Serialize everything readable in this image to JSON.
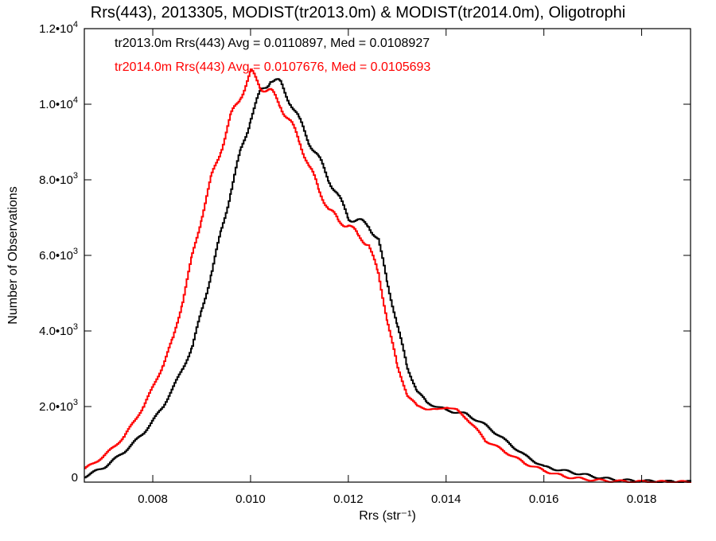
{
  "chart_data": {
    "type": "line",
    "title": "Rrs(443), 2013305, MODIST(tr2013.0m) & MODIST(tr2014.0m), Oligotrophi",
    "xlabel": "Rrs (str⁻¹)",
    "ylabel": "Number of Observations",
    "xlim": [
      0.0066,
      0.019
    ],
    "ylim": [
      0,
      12000
    ],
    "x_ticks": [
      {
        "v": 0.008,
        "label": "0.008"
      },
      {
        "v": 0.01,
        "label": "0.010"
      },
      {
        "v": 0.012,
        "label": "0.012"
      },
      {
        "v": 0.014,
        "label": "0.014"
      },
      {
        "v": 0.016,
        "label": "0.016"
      },
      {
        "v": 0.018,
        "label": "0.018"
      }
    ],
    "y_ticks": [
      {
        "v": 0,
        "mant": "0",
        "exp": ""
      },
      {
        "v": 2000,
        "mant": "2.0•10",
        "exp": "3"
      },
      {
        "v": 4000,
        "mant": "4.0•10",
        "exp": "3"
      },
      {
        "v": 6000,
        "mant": "6.0•10",
        "exp": "3"
      },
      {
        "v": 8000,
        "mant": "8.0•10",
        "exp": "3"
      },
      {
        "v": 10000,
        "mant": "1.0•10",
        "exp": "4"
      },
      {
        "v": 12000,
        "mant": "1.2•10",
        "exp": "4"
      }
    ],
    "grid": false,
    "legend_position": "top-left",
    "series": [
      {
        "name": "tr2013.0m",
        "legend_text": "tr2013.0m Rrs(443) Avg = 0.0110897, Med = 0.0108927",
        "color": "#000000",
        "x": [
          0.0066,
          0.007,
          0.0074,
          0.0078,
          0.0082,
          0.0086,
          0.0088,
          0.009,
          0.0092,
          0.0094,
          0.0096,
          0.0098,
          0.01,
          0.0102,
          0.0104,
          0.0106,
          0.0108,
          0.011,
          0.0112,
          0.0114,
          0.0116,
          0.0118,
          0.012,
          0.0122,
          0.0124,
          0.0126,
          0.0128,
          0.013,
          0.0132,
          0.0134,
          0.0136,
          0.0138,
          0.014,
          0.0144,
          0.0148,
          0.0152,
          0.0156,
          0.016,
          0.0164,
          0.0168,
          0.0172,
          0.0176,
          0.018,
          0.0184,
          0.019
        ],
        "y": [
          150,
          400,
          800,
          1300,
          2000,
          3000,
          3600,
          4600,
          5600,
          6700,
          7800,
          8800,
          9700,
          10300,
          10700,
          10500,
          10100,
          9500,
          9000,
          8500,
          8000,
          7500,
          7000,
          6900,
          6800,
          6400,
          5200,
          4100,
          3000,
          2400,
          2100,
          2000,
          1900,
          1800,
          1500,
          1100,
          700,
          400,
          300,
          200,
          100,
          50,
          30,
          15,
          5
        ]
      },
      {
        "name": "tr2014.0m",
        "legend_text": "tr2014.0m Rrs(443) Avg = 0.0107676, Med = 0.0105693",
        "color": "#ff0000",
        "x": [
          0.0066,
          0.007,
          0.0074,
          0.0078,
          0.0082,
          0.0084,
          0.0086,
          0.0088,
          0.009,
          0.0092,
          0.0094,
          0.0096,
          0.0098,
          0.01,
          0.0102,
          0.0104,
          0.0106,
          0.0108,
          0.011,
          0.0112,
          0.0114,
          0.0116,
          0.0118,
          0.012,
          0.0122,
          0.0124,
          0.0126,
          0.0128,
          0.013,
          0.0132,
          0.0134,
          0.0136,
          0.0138,
          0.014,
          0.0142,
          0.0144,
          0.0148,
          0.0152,
          0.0156,
          0.016,
          0.0164,
          0.0168,
          0.0172,
          0.0176,
          0.018,
          0.0184,
          0.019
        ],
        "y": [
          350,
          700,
          1200,
          2000,
          3100,
          3800,
          4800,
          6000,
          7100,
          8100,
          8900,
          9700,
          10300,
          10800,
          10500,
          10300,
          10000,
          9500,
          9000,
          8300,
          7700,
          7200,
          6900,
          6800,
          6500,
          6300,
          5500,
          4200,
          3000,
          2300,
          2000,
          1950,
          1900,
          2000,
          1900,
          1700,
          1100,
          800,
          500,
          300,
          150,
          80,
          40,
          20,
          10,
          5,
          2
        ]
      }
    ]
  }
}
